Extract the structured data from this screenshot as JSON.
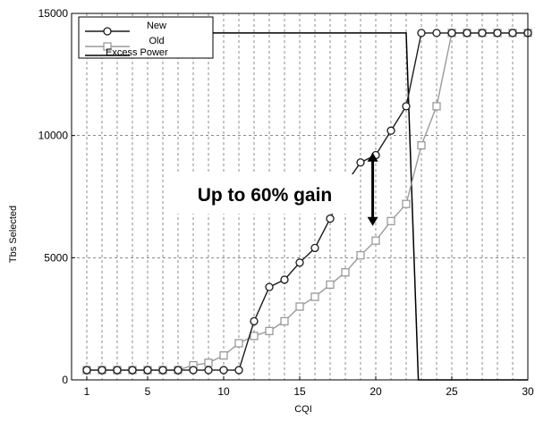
{
  "chart_data": {
    "type": "line",
    "xlabel": "CQI",
    "ylabel": "Tbs Selected",
    "xlim": [
      0,
      30
    ],
    "ylim": [
      0,
      15000
    ],
    "x_ticks": [
      1,
      5,
      10,
      15,
      20,
      25,
      30
    ],
    "y_ticks": [
      0,
      5000,
      10000,
      15000
    ],
    "grid": true,
    "legend_position": "top-left",
    "annotation": "Up to 60% gain",
    "annotation_arrow": {
      "x": 19.8,
      "y_from": 9300,
      "y_to": 6300
    },
    "series": [
      {
        "name": "New",
        "color": "#1a1a1a",
        "marker": "circle",
        "x": [
          1,
          2,
          3,
          4,
          5,
          6,
          7,
          8,
          9,
          10,
          11,
          12,
          13,
          14,
          15,
          16,
          17,
          18,
          19,
          20,
          21,
          22,
          23,
          24,
          25,
          26,
          27,
          28,
          29,
          30
        ],
        "y": [
          400,
          400,
          400,
          400,
          400,
          400,
          400,
          400,
          400,
          400,
          400,
          2400,
          3800,
          4100,
          4800,
          5400,
          6600,
          8000,
          8900,
          9200,
          10200,
          11200,
          14200,
          14200,
          14200,
          14200,
          14200,
          14200,
          14200,
          14200
        ]
      },
      {
        "name": "Old",
        "color": "#9a9a9a",
        "marker": "square",
        "x": [
          1,
          2,
          3,
          4,
          5,
          6,
          7,
          8,
          9,
          10,
          11,
          12,
          13,
          14,
          15,
          16,
          17,
          18,
          19,
          20,
          21,
          22,
          23,
          24,
          25,
          26,
          27,
          28,
          29,
          30
        ],
        "y": [
          400,
          400,
          400,
          400,
          400,
          400,
          400,
          600,
          700,
          1000,
          1500,
          1800,
          2000,
          2400,
          3000,
          3400,
          3900,
          4400,
          5100,
          5700,
          6500,
          7200,
          9600,
          11200,
          14200,
          14200,
          14200,
          14200,
          14200,
          14200
        ]
      },
      {
        "name": "Excess Power",
        "color": "#000000",
        "marker": "none",
        "x": [
          1,
          22,
          22.8,
          30
        ],
        "y": [
          14200,
          14200,
          0,
          0
        ]
      }
    ]
  }
}
